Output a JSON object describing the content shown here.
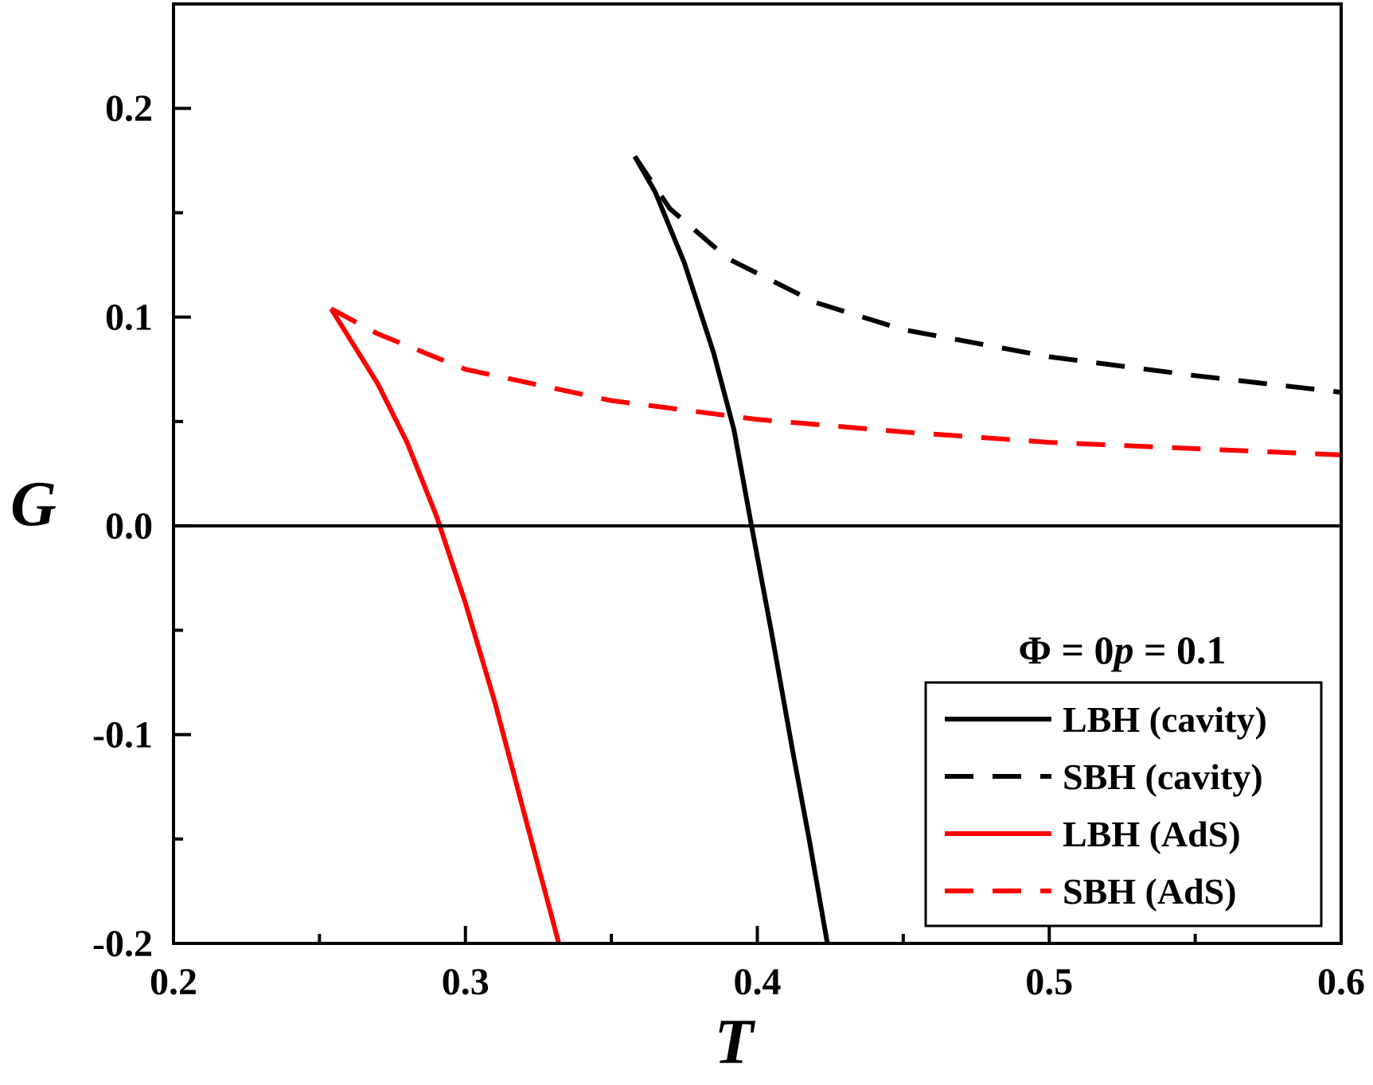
{
  "chart_data": {
    "type": "line",
    "xlabel": "T",
    "ylabel": "G",
    "xlim": [
      0.2,
      0.6
    ],
    "ylim": [
      -0.2,
      0.25
    ],
    "x_ticks": [
      "0.2",
      "0.3",
      "0.4",
      "0.5",
      "0.6"
    ],
    "y_ticks": [
      "-0.2",
      "-0.1",
      "0.0",
      "0.1",
      "0.2"
    ],
    "grid": false,
    "legend_position": "bottom-right",
    "annotation": {
      "phi": "Φ = 0",
      "p_symbol": "p",
      "p_value": " = 0.1"
    },
    "reference_line_y": 0.0,
    "series": [
      {
        "name": "LBH (cavity)",
        "color": "#000000",
        "dash": "solid",
        "x": [
          0.358,
          0.365,
          0.375,
          0.385,
          0.392,
          0.398,
          0.405,
          0.412,
          0.418,
          0.424
        ],
        "y": [
          0.177,
          0.16,
          0.126,
          0.083,
          0.046,
          0.0,
          -0.052,
          -0.107,
          -0.152,
          -0.2
        ]
      },
      {
        "name": "SBH (cavity)",
        "color": "#000000",
        "dash": "dashed",
        "x": [
          0.358,
          0.37,
          0.39,
          0.42,
          0.45,
          0.5,
          0.55,
          0.6
        ],
        "y": [
          0.177,
          0.152,
          0.128,
          0.107,
          0.094,
          0.081,
          0.072,
          0.064
        ]
      },
      {
        "name": "LBH (AdS)",
        "color": "#ff0000",
        "dash": "solid",
        "x": [
          0.254,
          0.262,
          0.27,
          0.28,
          0.29,
          0.3,
          0.31,
          0.32,
          0.332
        ],
        "y": [
          0.104,
          0.086,
          0.068,
          0.04,
          0.005,
          -0.037,
          -0.084,
          -0.137,
          -0.2
        ]
      },
      {
        "name": "SBH (AdS)",
        "color": "#ff0000",
        "dash": "dashed",
        "x": [
          0.254,
          0.27,
          0.3,
          0.35,
          0.4,
          0.45,
          0.5,
          0.55,
          0.6
        ],
        "y": [
          0.104,
          0.092,
          0.075,
          0.06,
          0.051,
          0.045,
          0.04,
          0.037,
          0.034
        ]
      }
    ]
  }
}
